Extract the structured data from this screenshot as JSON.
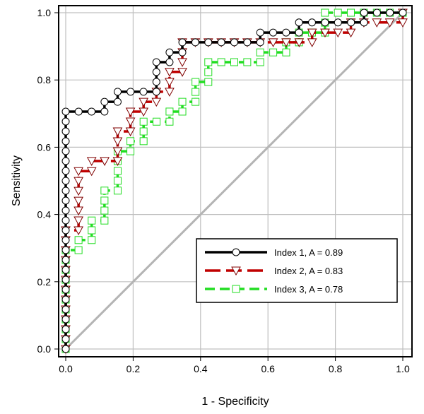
{
  "chart_data": {
    "type": "line",
    "title": "",
    "xlabel": "1 - Specificity",
    "ylabel": "Sensitivity",
    "xlim": [
      0,
      1
    ],
    "ylim": [
      0,
      1
    ],
    "xticks": [
      "0.0",
      "0.2",
      "0.4",
      "0.6",
      "0.8",
      "1.0"
    ],
    "yticks": [
      "0.0",
      "0.2",
      "0.4",
      "0.6",
      "0.8",
      "1.0"
    ],
    "grid": true,
    "legend_position": "bottom-right",
    "reference_line": {
      "x": [
        0,
        1
      ],
      "y": [
        0,
        1
      ],
      "color": "#b4b4b4"
    },
    "series": [
      {
        "name": "Index 1, A = 0.89",
        "color": "#000000",
        "marker": "circle",
        "dash": "solid",
        "x": [
          0,
          0,
          0.115,
          0.115,
          0.154,
          0.154,
          0.269,
          0.269,
          0.308,
          0.308,
          0.346,
          0.346,
          0.577,
          0.577,
          0.692,
          0.692,
          0.885,
          0.885,
          1
        ],
        "y": [
          0,
          0.706,
          0.706,
          0.735,
          0.735,
          0.765,
          0.765,
          0.853,
          0.853,
          0.882,
          0.882,
          0.912,
          0.912,
          0.941,
          0.941,
          0.971,
          0.971,
          1,
          1
        ]
      },
      {
        "name": "Index 2, A = 0.83",
        "color": "#c00000",
        "marker": "triangle-down",
        "dash": "long-dash",
        "x": [
          0,
          0,
          0.038,
          0.038,
          0.077,
          0.077,
          0.154,
          0.154,
          0.192,
          0.192,
          0.231,
          0.231,
          0.269,
          0.269,
          0.308,
          0.308,
          0.346,
          0.346,
          0.731,
          0.731,
          0.846,
          0.846,
          1,
          1
        ],
        "y": [
          0,
          0.353,
          0.353,
          0.529,
          0.529,
          0.559,
          0.559,
          0.647,
          0.647,
          0.706,
          0.706,
          0.735,
          0.735,
          0.765,
          0.765,
          0.824,
          0.824,
          0.912,
          0.912,
          0.941,
          0.941,
          0.971,
          0.971,
          1
        ]
      },
      {
        "name": "Index 3, A = 0.78",
        "color": "#22dd22",
        "marker": "square",
        "dash": "dash",
        "x": [
          0,
          0,
          0.038,
          0.038,
          0.077,
          0.077,
          0.115,
          0.115,
          0.154,
          0.154,
          0.192,
          0.192,
          0.231,
          0.231,
          0.308,
          0.308,
          0.346,
          0.346,
          0.385,
          0.385,
          0.423,
          0.423,
          0.577,
          0.577,
          0.654,
          0.654,
          0.692,
          0.692,
          0.769,
          0.769,
          1
        ],
        "y": [
          0,
          0.294,
          0.294,
          0.324,
          0.324,
          0.382,
          0.382,
          0.471,
          0.471,
          0.588,
          0.588,
          0.618,
          0.618,
          0.676,
          0.676,
          0.706,
          0.706,
          0.735,
          0.735,
          0.794,
          0.794,
          0.853,
          0.853,
          0.882,
          0.882,
          0.912,
          0.912,
          0.941,
          0.941,
          1,
          1
        ]
      }
    ]
  }
}
